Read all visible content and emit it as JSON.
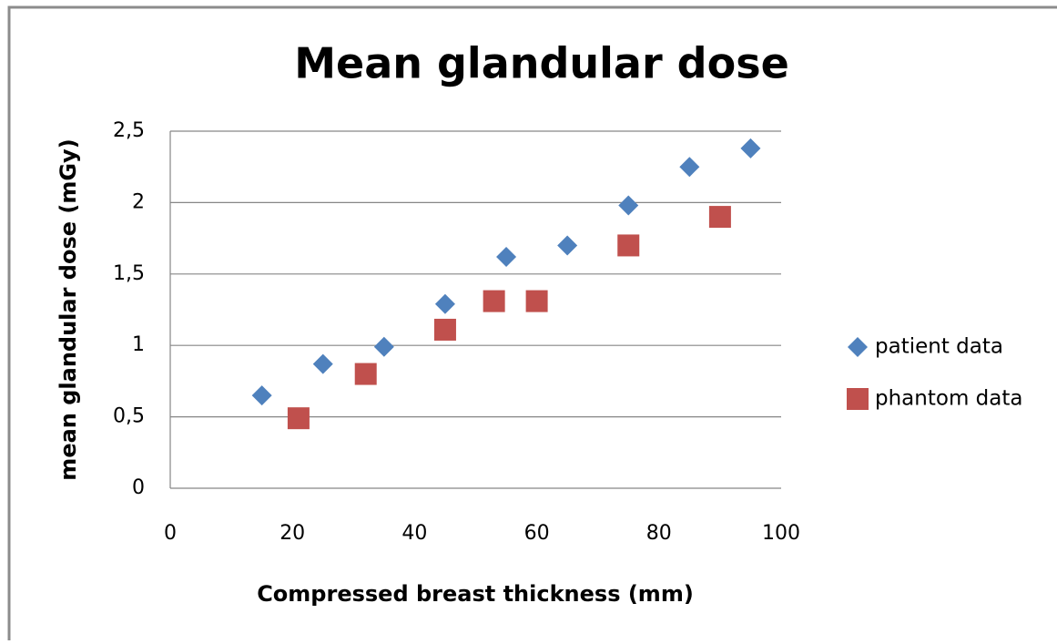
{
  "chart_data": {
    "type": "scatter",
    "title": "Mean glandular dose",
    "x_label": "Compressed breast thickness (mm)",
    "y_label": "mean glandular dose (mGy)",
    "xlim": [
      0,
      100
    ],
    "xticks": [
      0,
      20,
      40,
      60,
      80,
      100
    ],
    "ylim": [
      0,
      2.5
    ],
    "yticks": [
      0,
      {
        "value": 0.5,
        "label": "0,5"
      },
      1,
      {
        "value": 1.5,
        "label": "1,5"
      },
      2,
      {
        "value": 2.5,
        "label": "2,5"
      }
    ],
    "grid": true,
    "legend": "right",
    "series": [
      {
        "name": "patient data",
        "color": "#4f81bd",
        "marker": "diamond",
        "x": [
          15,
          25,
          35,
          45,
          55,
          65,
          75,
          85,
          95
        ],
        "values": [
          0.65,
          0.87,
          0.99,
          1.29,
          1.62,
          1.7,
          1.98,
          2.25,
          2.38
        ]
      },
      {
        "name": "phantom data",
        "color": "#c0504d",
        "marker": "square",
        "x": [
          21,
          32,
          45,
          53,
          60,
          75,
          90
        ],
        "values": [
          0.49,
          0.8,
          1.11,
          1.31,
          1.31,
          1.7,
          1.9
        ]
      }
    ]
  }
}
